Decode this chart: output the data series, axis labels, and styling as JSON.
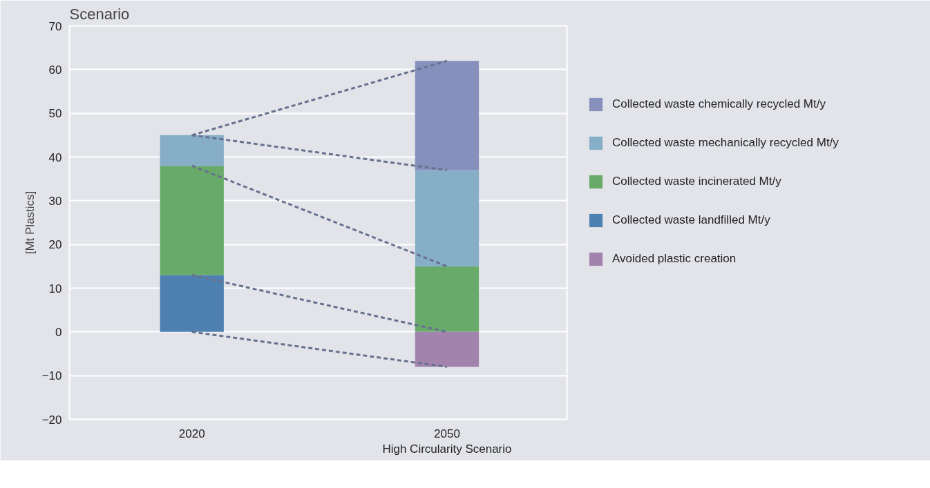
{
  "chart_data": {
    "type": "bar",
    "title": "Scenario",
    "ylabel": "[Mt Plastics]",
    "categories": [
      "2020",
      "2050\nHigh Circularity Scenario"
    ],
    "stacked": true,
    "series": [
      {
        "name": "Collected waste landfilled Mt/y",
        "color": "#4e80b2",
        "values": [
          13,
          null
        ]
      },
      {
        "name": "Collected waste incinerated Mt/y",
        "color": "#68aa69",
        "values": [
          25,
          15
        ]
      },
      {
        "name": "Collected waste mechanically recycled Mt/y",
        "color": "#86aec7",
        "values": [
          7,
          22
        ]
      },
      {
        "name": "Collected waste chemically recycled Mt/y",
        "color": "#8790bd",
        "values": [
          null,
          25
        ]
      },
      {
        "name": "Avoided plastic creation",
        "color": "#a283ae",
        "values": [
          null,
          -8
        ]
      },
      {
        "type": "line",
        "color": "#67718f",
        "line_style": "dashed",
        "values": [
          45,
          62
        ]
      },
      {
        "type": "line",
        "color": "#67718f",
        "line_style": "dashed",
        "values": [
          45,
          37
        ]
      },
      {
        "type": "line",
        "color": "#67718f",
        "line_style": "dashed",
        "values": [
          38,
          15
        ]
      },
      {
        "type": "line",
        "color": "#67718f",
        "line_style": "dashed",
        "values": [
          13,
          0
        ]
      },
      {
        "type": "line",
        "color": "#67718f",
        "line_style": "dashed",
        "values": [
          0,
          -8
        ]
      }
    ],
    "ylim": [
      -20,
      70
    ],
    "yticks": [
      {
        "value": -20,
        "label": "−20"
      },
      {
        "value": -10,
        "label": "−10"
      },
      0,
      10,
      20,
      30,
      40,
      50,
      60,
      70
    ],
    "grid": "y",
    "legend": "right"
  }
}
